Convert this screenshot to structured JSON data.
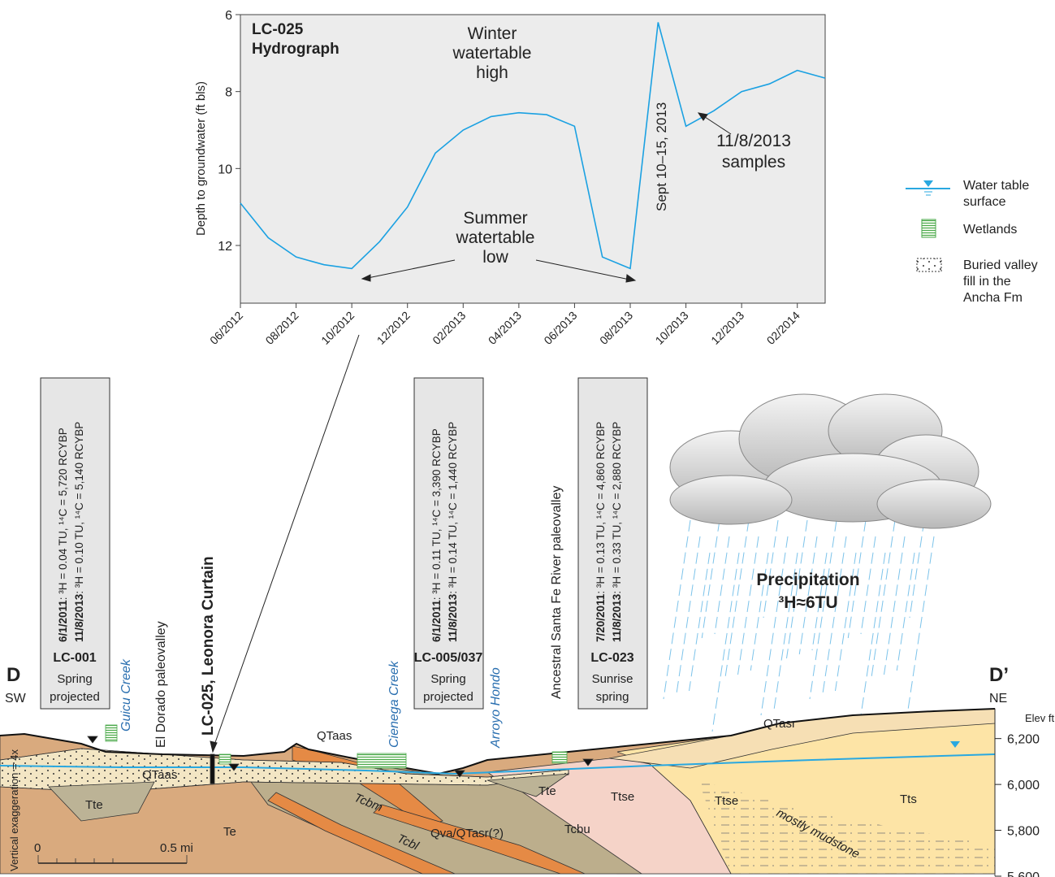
{
  "chart_data": {
    "type": "line",
    "title_lines": [
      "LC-025",
      "Hydrograph"
    ],
    "y_label": "Depth to groundwater (ft bls)",
    "x": [
      "06/2012",
      "07/2012",
      "08/2012",
      "09/2012",
      "10/2012",
      "11/2012",
      "12/2012",
      "01/2013",
      "02/2013",
      "03/2013",
      "04/2013",
      "05/2013",
      "06/2013",
      "07/2013",
      "08/2013",
      "09/2013",
      "10/2013",
      "11/2013",
      "12/2013",
      "01/2014",
      "02/2014",
      "03/2014"
    ],
    "values": [
      10.9,
      11.8,
      12.3,
      12.5,
      12.6,
      11.9,
      11.0,
      9.6,
      9.0,
      8.65,
      8.55,
      8.6,
      8.9,
      12.3,
      12.6,
      6.2,
      8.9,
      8.5,
      8.0,
      7.8,
      7.45,
      7.65
    ],
    "color": "#1ba1e2",
    "xlim": [
      "06/2012",
      "03/2014"
    ],
    "ylim": [
      13.5,
      6
    ],
    "yticks": [
      6,
      8,
      10,
      12
    ],
    "xticks": [
      "06/2012",
      "08/2012",
      "10/2012",
      "12/2012",
      "02/2013",
      "04/2013",
      "06/2013",
      "08/2013",
      "10/2013",
      "12/2013",
      "02/2014"
    ],
    "annotations": {
      "winter": [
        "Winter",
        "watertable",
        "high"
      ],
      "summer": [
        "Summer",
        "watertable",
        "low"
      ],
      "storm": "Sept 10–15, 2013",
      "samples": [
        "11/8/2013",
        "samples"
      ]
    }
  },
  "legend": {
    "water_table": [
      "Water table",
      "surface"
    ],
    "wetlands": "Wetlands",
    "fill": [
      "Buried valley",
      "fill in the",
      "Ancha Fm"
    ]
  },
  "section": {
    "ends": {
      "left": "D",
      "left_dir": "SW",
      "right": "D’",
      "right_dir": "NE"
    },
    "elev_label": "Elev ft",
    "elev_lim": [
      5600,
      6330
    ],
    "elev_ticks": [
      {
        "value": 6200,
        "label": "6,200"
      },
      {
        "value": 6000,
        "label": "6,000"
      },
      {
        "value": 5800,
        "label": "5,800"
      },
      {
        "value": 5600,
        "label": "5,600"
      }
    ],
    "vert_exag": "Vertical exaggeration = 4x",
    "scale": [
      "0",
      "0.5 mi"
    ],
    "samples": [
      {
        "id": "LC-001",
        "type": [
          "Spring",
          "projected"
        ],
        "results": [
          {
            "date": "6/1/2011",
            "text": ": ³H = 0.04 TU, ¹⁴C = 5,720 RCYBP"
          },
          {
            "date": "11/8/2013",
            "text": ": ³H = 0.10 TU, ¹⁴C = 5,140 RCYBP"
          }
        ]
      },
      {
        "id": "LC-005/037",
        "type": [
          "Spring",
          "projected"
        ],
        "results": [
          {
            "date": "6/1/2011",
            "text": ": ³H = 0.11 TU, ¹⁴C = 3,390 RCYBP"
          },
          {
            "date": "11/8/2013",
            "text": ": ³H = 0.14 TU, ¹⁴C = 1,440 RCYBP"
          }
        ]
      },
      {
        "id": "LC-023",
        "type": [
          "Sunrise",
          "spring"
        ],
        "results": [
          {
            "date": "7/20/2011",
            "text": ": ³H = 0.13 TU, ¹⁴C = 4,860 RCYBP"
          },
          {
            "date": "11/8/2013",
            "text": ": ³H = 0.33 TU, ¹⁴C = 2,880 RCYBP"
          }
        ]
      }
    ],
    "creeks": [
      "Guicu Creek",
      "Cienega Creek",
      "Arroyo Hondo"
    ],
    "paleovalleys": [
      "El Dorado paleovalley",
      "Ancestral Santa Fe River paleovalley"
    ],
    "well": "LC-025, Leonora Curtain",
    "units": [
      "QTaas",
      "QTaas",
      "Tte",
      "Te",
      "Tcbm",
      "Tcbl",
      "Qva/QTasr(?)",
      "Tcbu",
      "Tte",
      "Ttse",
      "Ttse",
      "mostly mudstone",
      "Tts",
      "QTasr"
    ],
    "precipitation": [
      "Precipitation",
      "³H≈6TU"
    ]
  }
}
